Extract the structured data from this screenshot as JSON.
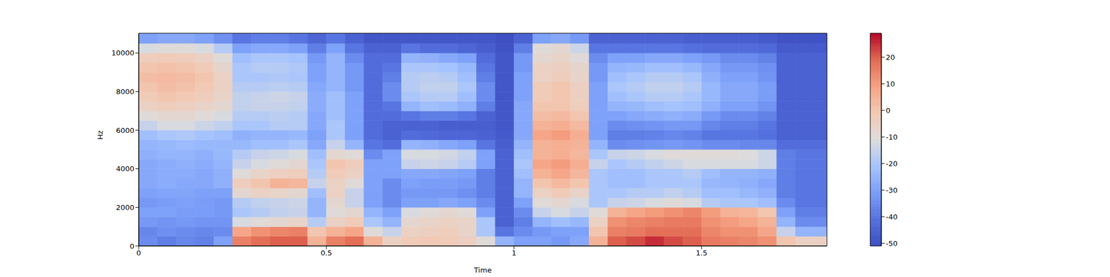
{
  "chart_data": {
    "type": "heatmap",
    "xlabel": "Time",
    "ylabel": "Hz",
    "xlim": [
      0,
      1.834
    ],
    "ylim": [
      0,
      11025
    ],
    "xticks": [
      0,
      0.5,
      1,
      1.5
    ],
    "yticks": [
      0,
      2000,
      4000,
      6000,
      8000,
      10000
    ],
    "cells": {
      "x_edges": [
        0,
        0.05,
        0.1,
        0.15,
        0.2,
        0.25,
        0.3,
        0.35,
        0.4,
        0.45,
        0.5,
        0.55,
        0.6,
        0.65,
        0.7,
        0.75,
        0.8,
        0.85,
        0.9,
        0.95,
        1.0,
        1.05,
        1.1,
        1.15,
        1.2,
        1.25,
        1.3,
        1.35,
        1.4,
        1.45,
        1.5,
        1.55,
        1.6,
        1.65,
        1.7,
        1.75,
        1.8,
        1.85
      ],
      "y_edges": [
        0,
        500,
        1000,
        1500,
        2000,
        2500,
        3000,
        3500,
        4000,
        4500,
        5000,
        5500,
        6000,
        6500,
        7000,
        7500,
        8000,
        8500,
        9000,
        9500,
        10000,
        10500,
        11025
      ],
      "values": [
        [
          -35,
          -36,
          -32,
          -30,
          -32,
          -30,
          -28,
          -28,
          -28,
          -26,
          -25,
          -22,
          -15,
          -10,
          -5,
          -2,
          0,
          2,
          0,
          -3,
          -12,
          -30
        ],
        [
          -38,
          -34,
          -33,
          -30,
          -31,
          -29,
          -27,
          -27,
          -27,
          -25,
          -24,
          -20,
          -12,
          -8,
          -3,
          0,
          2,
          3,
          1,
          -2,
          -10,
          -28
        ],
        [
          -36,
          -35,
          -32,
          -31,
          -30,
          -29,
          -28,
          -27,
          -26,
          -25,
          -23,
          -19,
          -12,
          -8,
          -4,
          -1,
          1,
          2,
          0,
          -3,
          -10,
          -28
        ],
        [
          -37,
          -36,
          -33,
          -31,
          -31,
          -30,
          -28,
          -28,
          -27,
          -26,
          -24,
          -21,
          -14,
          -10,
          -6,
          -3,
          -1,
          0,
          -2,
          -5,
          -12,
          -30
        ],
        [
          -30,
          -35,
          -33,
          -32,
          -32,
          -30,
          -26,
          -26,
          -25,
          -24,
          -24,
          -22,
          -16,
          -12,
          -8,
          -6,
          -5,
          -5,
          -7,
          -10,
          -18,
          -34
        ],
        [
          15,
          8,
          -12,
          -20,
          -18,
          -8,
          -3,
          -10,
          -15,
          -18,
          -24,
          -26,
          -20,
          -18,
          -16,
          -16,
          -18,
          -20,
          -20,
          -22,
          -30,
          -40
        ],
        [
          18,
          12,
          -10,
          -18,
          -16,
          -5,
          0,
          -6,
          -12,
          -15,
          -22,
          -25,
          -20,
          -18,
          -15,
          -15,
          -18,
          -20,
          -18,
          -20,
          -28,
          -38
        ],
        [
          20,
          14,
          -8,
          -16,
          -15,
          -6,
          5,
          -4,
          -10,
          -14,
          -22,
          -25,
          -18,
          -17,
          -15,
          -14,
          -17,
          -19,
          -18,
          -20,
          -28,
          -38
        ],
        [
          20,
          15,
          -6,
          -15,
          -14,
          -8,
          4,
          -3,
          -8,
          -12,
          -20,
          -24,
          -18,
          -18,
          -16,
          -15,
          -18,
          -20,
          -19,
          -21,
          -30,
          -40
        ],
        [
          5,
          0,
          -18,
          -25,
          -25,
          -22,
          -15,
          -18,
          -20,
          -22,
          -28,
          -30,
          -28,
          -28,
          -27,
          -27,
          -28,
          -30,
          -30,
          -32,
          -38,
          -44
        ],
        [
          15,
          5,
          -5,
          -10,
          -8,
          -5,
          -5,
          -2,
          0,
          -8,
          -15,
          -20,
          -20,
          -22,
          -22,
          -22,
          -25,
          -25,
          -25,
          -25,
          -30,
          -40
        ],
        [
          18,
          8,
          -2,
          -8,
          -15,
          -15,
          -10,
          -5,
          -3,
          -10,
          -25,
          -30,
          -30,
          -30,
          -30,
          -30,
          -32,
          -32,
          -32,
          -35,
          -40,
          -45
        ],
        [
          5,
          -10,
          -20,
          -25,
          -30,
          -30,
          -30,
          -30,
          -30,
          -35,
          -40,
          -42,
          -42,
          -42,
          -42,
          -42,
          -42,
          -42,
          -42,
          -42,
          -45,
          -48
        ],
        [
          -5,
          -15,
          -25,
          -30,
          -35,
          -35,
          -35,
          -30,
          -30,
          -30,
          -42,
          -45,
          -45,
          -42,
          -40,
          -35,
          -35,
          -38,
          -40,
          -42,
          -45,
          -48
        ],
        [
          -2,
          -5,
          -8,
          -12,
          -30,
          -32,
          -30,
          -28,
          -15,
          -12,
          -25,
          -42,
          -45,
          -40,
          -25,
          -20,
          -18,
          -18,
          -20,
          -25,
          -40,
          -48
        ],
        [
          -1,
          -4,
          -6,
          -10,
          -30,
          -32,
          -31,
          -28,
          -14,
          -12,
          -26,
          -43,
          -45,
          -38,
          -22,
          -18,
          -16,
          -17,
          -20,
          -26,
          -42,
          -48
        ],
        [
          -2,
          -3,
          -5,
          -8,
          -28,
          -32,
          -31,
          -29,
          -15,
          -13,
          -28,
          -44,
          -46,
          -38,
          -23,
          -18,
          -16,
          -18,
          -21,
          -28,
          -42,
          -48
        ],
        [
          -4,
          -6,
          -6,
          -10,
          -30,
          -34,
          -32,
          -30,
          -18,
          -16,
          -30,
          -44,
          -46,
          -40,
          -26,
          -22,
          -20,
          -22,
          -24,
          -30,
          -44,
          -48
        ],
        [
          -10,
          -20,
          -20,
          -30,
          -35,
          -38,
          -38,
          -38,
          -30,
          -30,
          -40,
          -45,
          -46,
          -45,
          -38,
          -35,
          -35,
          -38,
          -40,
          -42,
          -46,
          -48
        ],
        [
          -25,
          -40,
          -45,
          -45,
          -45,
          -45,
          -45,
          -45,
          -45,
          -45,
          -46,
          -47,
          -48,
          -48,
          -48,
          -48,
          -48,
          -48,
          -48,
          -48,
          -49,
          -50
        ],
        [
          -30,
          -35,
          -38,
          -35,
          -30,
          -25,
          -25,
          -22,
          -20,
          -22,
          -25,
          -28,
          -28,
          -28,
          -28,
          -30,
          -30,
          -30,
          -32,
          -32,
          -38,
          -45
        ],
        [
          -30,
          -32,
          -25,
          -15,
          -10,
          -5,
          0,
          5,
          8,
          5,
          5,
          8,
          5,
          2,
          0,
          -2,
          -2,
          -5,
          -5,
          -8,
          -10,
          -30
        ],
        [
          -32,
          -30,
          -22,
          -12,
          -8,
          -2,
          3,
          8,
          10,
          6,
          6,
          10,
          6,
          3,
          0,
          0,
          0,
          -3,
          -4,
          -6,
          -8,
          -28
        ],
        [
          -28,
          -30,
          -24,
          -15,
          -12,
          -6,
          0,
          4,
          6,
          4,
          5,
          6,
          3,
          0,
          -3,
          -4,
          -4,
          -6,
          -7,
          -10,
          -14,
          -32
        ],
        [
          5,
          0,
          -5,
          -10,
          -20,
          -20,
          -20,
          -20,
          -15,
          -20,
          -25,
          -30,
          -30,
          -30,
          -30,
          -30,
          -30,
          -32,
          -32,
          -35,
          -40,
          -45
        ],
        [
          20,
          15,
          12,
          5,
          -15,
          -20,
          -22,
          -22,
          -20,
          -15,
          -35,
          -38,
          -35,
          -30,
          -25,
          -22,
          -20,
          -22,
          -25,
          -30,
          -40,
          -45
        ],
        [
          22,
          16,
          14,
          8,
          -14,
          -18,
          -22,
          -22,
          -18,
          -14,
          -34,
          -38,
          -34,
          -28,
          -24,
          -20,
          -18,
          -20,
          -24,
          -30,
          -40,
          -45
        ],
        [
          25,
          18,
          15,
          10,
          -12,
          -18,
          -20,
          -20,
          -16,
          -12,
          -33,
          -37,
          -33,
          -27,
          -22,
          -18,
          -16,
          -18,
          -22,
          -28,
          -40,
          -45
        ],
        [
          22,
          18,
          16,
          12,
          -10,
          -16,
          -20,
          -20,
          -14,
          -10,
          -32,
          -36,
          -32,
          -26,
          -21,
          -18,
          -16,
          -18,
          -22,
          -28,
          -40,
          -45
        ],
        [
          20,
          18,
          16,
          14,
          -12,
          -18,
          -20,
          -18,
          -12,
          -10,
          -33,
          -37,
          -32,
          -27,
          -22,
          -20,
          -18,
          -20,
          -24,
          -30,
          -41,
          -46
        ],
        [
          16,
          14,
          12,
          10,
          -18,
          -22,
          -24,
          -22,
          -12,
          -10,
          -35,
          -40,
          -36,
          -32,
          -26,
          -24,
          -24,
          -26,
          -28,
          -32,
          -42,
          -46
        ],
        [
          15,
          12,
          10,
          5,
          -20,
          -22,
          -25,
          -25,
          -12,
          -10,
          -35,
          -40,
          -38,
          -35,
          -30,
          -28,
          -28,
          -30,
          -32,
          -35,
          -42,
          -46
        ],
        [
          14,
          12,
          8,
          4,
          -20,
          -24,
          -26,
          -25,
          -12,
          -11,
          -36,
          -40,
          -38,
          -35,
          -30,
          -28,
          -28,
          -30,
          -32,
          -35,
          -42,
          -46
        ],
        [
          12,
          8,
          5,
          0,
          -22,
          -26,
          -28,
          -26,
          -14,
          -14,
          -36,
          -41,
          -40,
          -37,
          -33,
          -31,
          -31,
          -33,
          -34,
          -37,
          -43,
          -47
        ],
        [
          0,
          -15,
          -25,
          -30,
          -35,
          -38,
          -38,
          -38,
          -38,
          -38,
          -42,
          -45,
          -45,
          -45,
          -45,
          -45,
          -45,
          -45,
          -45,
          -45,
          -47,
          -49
        ],
        [
          -5,
          -25,
          -35,
          -38,
          -40,
          -40,
          -40,
          -40,
          -40,
          -40,
          -42,
          -45,
          -45,
          -45,
          -45,
          -45,
          -45,
          -45,
          -45,
          -45,
          -47,
          -49
        ],
        [
          -5,
          -25,
          -35,
          -38,
          -40,
          -40,
          -40,
          -40,
          -40,
          -40,
          -42,
          -45,
          -45,
          -45,
          -45,
          -45,
          -45,
          -45,
          -45,
          -45,
          -47,
          -49
        ]
      ]
    },
    "colorbar": {
      "range": [
        -51,
        29
      ],
      "ticks": [
        -50,
        -40,
        -30,
        -20,
        -10,
        0,
        10,
        20
      ]
    }
  }
}
